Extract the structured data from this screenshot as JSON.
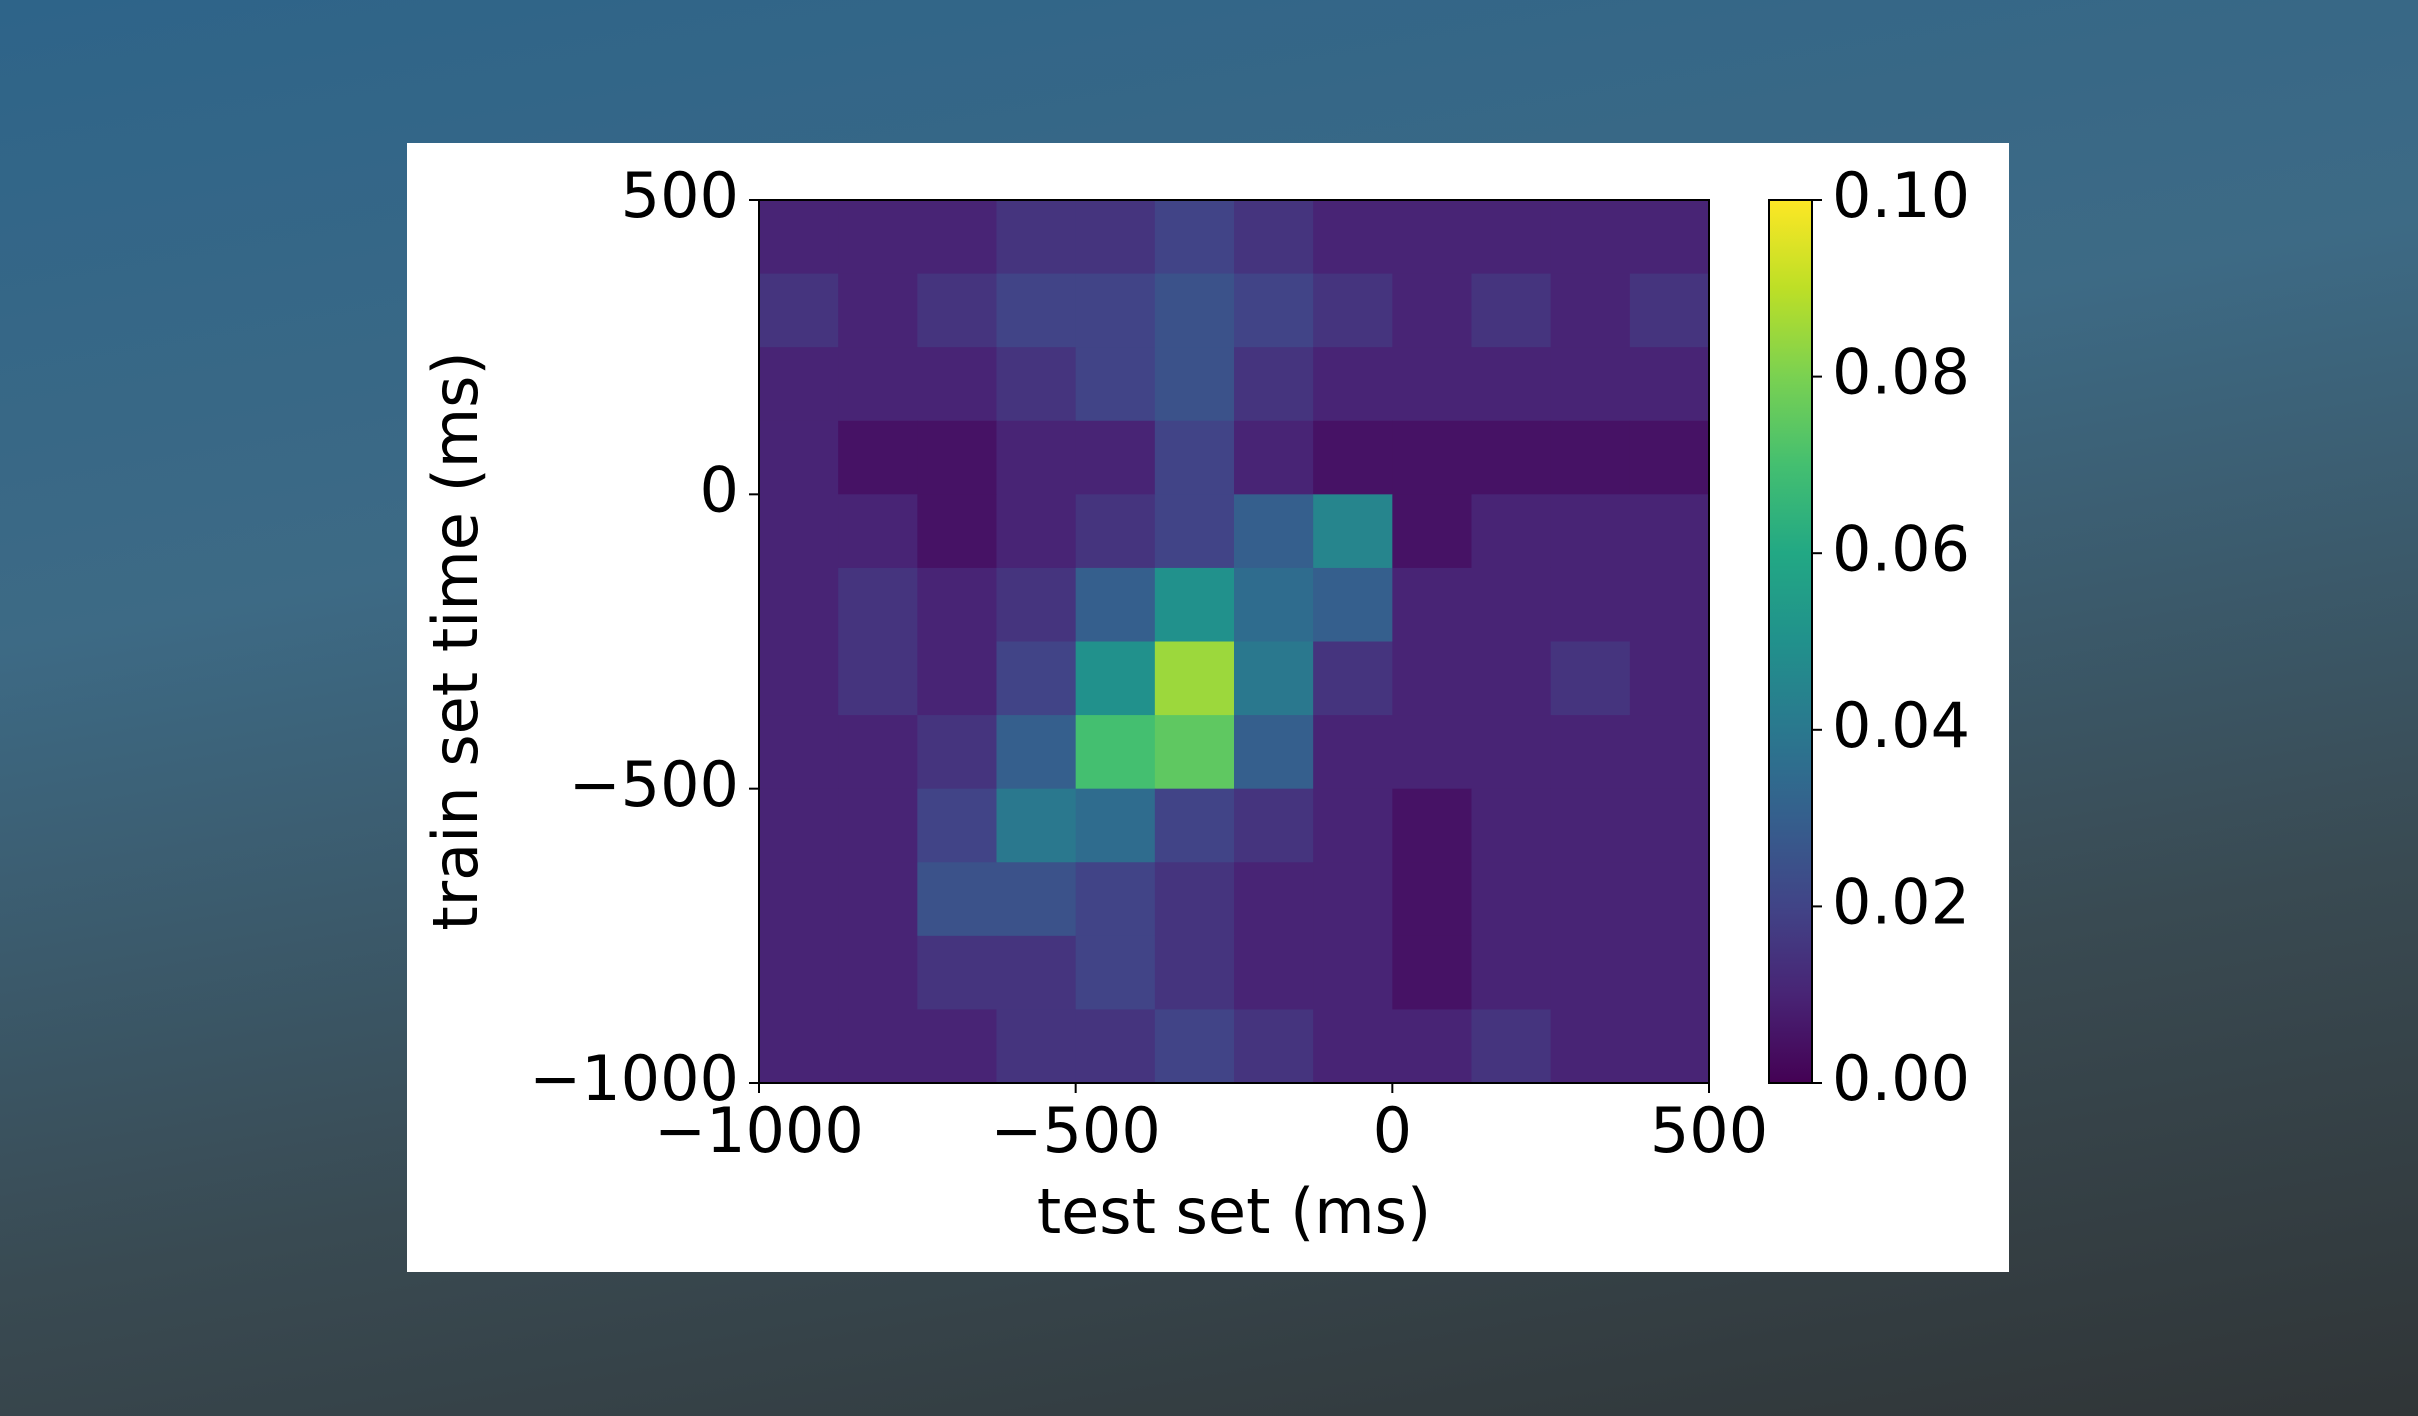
{
  "chart_data": {
    "type": "heatmap",
    "xlabel": "test set (ms)",
    "ylabel": "train set time (ms)",
    "xlim": [
      -1000,
      500
    ],
    "ylim": [
      -1000,
      500
    ],
    "xticks": [
      {
        "value": -1000,
        "label": "−1000"
      },
      {
        "value": -500,
        "label": "−500"
      },
      0,
      500
    ],
    "yticks": [
      {
        "value": -1000,
        "label": "−1000"
      },
      {
        "value": -500,
        "label": "−500"
      },
      0,
      500
    ],
    "colormap": "viridis",
    "clim": [
      0,
      0.1
    ],
    "cticks": [
      {
        "value": 0,
        "label": "0.00"
      },
      {
        "value": 0.02,
        "label": "0.02"
      },
      {
        "value": 0.04,
        "label": "0.04"
      },
      {
        "value": 0.06,
        "label": "0.06"
      },
      {
        "value": 0.08,
        "label": "0.08"
      },
      {
        "value": 0.1,
        "label": "0.10"
      }
    ],
    "values": [
      [
        0.01,
        0.01,
        0.01,
        0.015,
        0.015,
        0.02,
        0.015,
        0.01,
        0.01,
        0.01,
        0.01,
        0.01
      ],
      [
        0.015,
        0.01,
        0.015,
        0.02,
        0.02,
        0.025,
        0.02,
        0.015,
        0.01,
        0.015,
        0.01,
        0.015
      ],
      [
        0.01,
        0.01,
        0.01,
        0.015,
        0.02,
        0.025,
        0.015,
        0.01,
        0.01,
        0.01,
        0.01,
        0.01
      ],
      [
        0.01,
        0.005,
        0.005,
        0.01,
        0.01,
        0.02,
        0.01,
        0.005,
        0.005,
        0.005,
        0.005,
        0.005
      ],
      [
        0.01,
        0.01,
        0.005,
        0.01,
        0.015,
        0.02,
        0.03,
        0.045,
        0.005,
        0.01,
        0.01,
        0.01
      ],
      [
        0.01,
        0.015,
        0.01,
        0.015,
        0.03,
        0.05,
        0.035,
        0.03,
        0.01,
        0.01,
        0.01,
        0.01
      ],
      [
        0.01,
        0.015,
        0.01,
        0.02,
        0.05,
        0.085,
        0.04,
        0.015,
        0.01,
        0.01,
        0.015,
        0.01
      ],
      [
        0.01,
        0.01,
        0.015,
        0.03,
        0.07,
        0.075,
        0.03,
        0.01,
        0.01,
        0.01,
        0.01,
        0.01
      ],
      [
        0.01,
        0.01,
        0.02,
        0.04,
        0.035,
        0.02,
        0.015,
        0.01,
        0.005,
        0.01,
        0.01,
        0.01
      ],
      [
        0.01,
        0.01,
        0.025,
        0.025,
        0.02,
        0.015,
        0.01,
        0.01,
        0.005,
        0.01,
        0.01,
        0.01
      ],
      [
        0.01,
        0.01,
        0.015,
        0.015,
        0.02,
        0.015,
        0.01,
        0.01,
        0.005,
        0.01,
        0.01,
        0.01
      ],
      [
        0.01,
        0.01,
        0.01,
        0.015,
        0.015,
        0.02,
        0.015,
        0.01,
        0.01,
        0.015,
        0.01,
        0.01
      ]
    ]
  }
}
